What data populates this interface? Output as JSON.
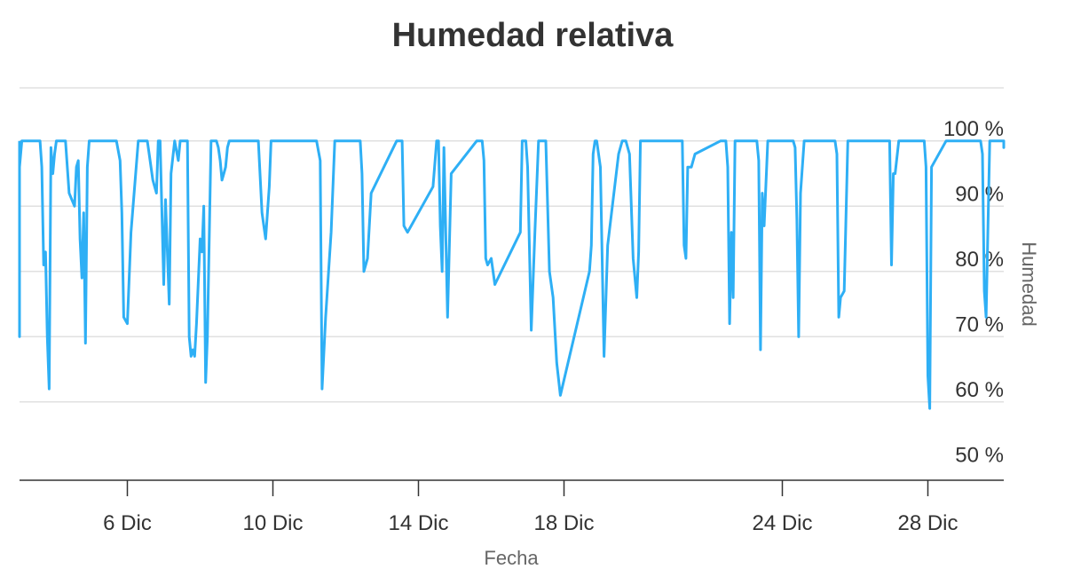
{
  "chart_data": {
    "type": "line",
    "title": "Humedad relativa",
    "xlabel": "Fecha",
    "ylabel": "Humedad",
    "ylim": [
      50,
      105
    ],
    "xlim": [
      2.2,
      30.5
    ],
    "y_ticks": [
      {
        "value": 50,
        "label": "50 %"
      },
      {
        "value": 60,
        "label": "60 %"
      },
      {
        "value": 70,
        "label": "70 %"
      },
      {
        "value": 80,
        "label": "80 %"
      },
      {
        "value": 90,
        "label": "90 %"
      },
      {
        "value": 100,
        "label": "100 %"
      }
    ],
    "x_ticks": [
      {
        "value": 6,
        "label": "6 Dic"
      },
      {
        "value": 10,
        "label": "10 Dic"
      },
      {
        "value": 14,
        "label": "14 Dic"
      },
      {
        "value": 18,
        "label": "18 Dic"
      },
      {
        "value": 24,
        "label": "24 Dic"
      },
      {
        "value": 28,
        "label": "28 Dic"
      }
    ],
    "grid": true,
    "legend": "none",
    "series_color": "#2eaff5",
    "series": [
      {
        "x": [
          2.2,
          2.4,
          2.5,
          2.55,
          2.6,
          2.65,
          2.8,
          3.1,
          3.5,
          3.6,
          3.65,
          3.7,
          3.75,
          3.8,
          3.85,
          3.9,
          3.95,
          4.0,
          4.05,
          4.15,
          4.2,
          4.3,
          4.4,
          4.55,
          4.6,
          4.65,
          4.7,
          4.75,
          4.8,
          4.85,
          4.9,
          4.95,
          5.0,
          5.05,
          5.2,
          5.5,
          5.6,
          5.7,
          5.8,
          5.85,
          5.9,
          6.0,
          6.1,
          6.3,
          6.5,
          6.55,
          6.6,
          6.7,
          6.8,
          6.85,
          6.9,
          7.0,
          7.05,
          7.15,
          7.2,
          7.3,
          7.4,
          7.45,
          7.5,
          7.55,
          7.6,
          7.65,
          7.7,
          7.75,
          7.8,
          7.85,
          7.9,
          8.0,
          8.05,
          8.1,
          8.15,
          8.2,
          8.3,
          8.35,
          8.4,
          8.45,
          8.5,
          8.55,
          8.6,
          8.65,
          8.7,
          8.75,
          8.8,
          8.85,
          8.9,
          9.0,
          9.5,
          9.6,
          9.7,
          9.8,
          9.9,
          9.95,
          10.0,
          10.1,
          10.2,
          11.2,
          11.3,
          11.35,
          11.45,
          11.6,
          11.7,
          12.3,
          12.4,
          12.45,
          12.5,
          12.6,
          12.7,
          13.4,
          13.5,
          13.55,
          13.6,
          13.7,
          14.4,
          14.5,
          14.55,
          14.6,
          14.65,
          14.7,
          14.8,
          14.9,
          15.6,
          15.7,
          15.75,
          15.8,
          15.85,
          15.9,
          16.0,
          16.1,
          16.8,
          16.85,
          16.9,
          16.95,
          17.0,
          17.1,
          17.2,
          17.3,
          17.4,
          17.5,
          17.6,
          17.7,
          17.8,
          17.9,
          18.7,
          18.75,
          18.8,
          18.85,
          18.9,
          19.0,
          19.1,
          19.2,
          19.5,
          19.6,
          19.65,
          19.7,
          19.8,
          19.9,
          20.0,
          20.05,
          20.1,
          20.2,
          20.3,
          21.1,
          21.2,
          21.25,
          21.3,
          21.35,
          21.4,
          21.5,
          21.6,
          22.3,
          22.4,
          22.45,
          22.5,
          22.55,
          22.6,
          22.65,
          22.7,
          23.2,
          23.3,
          23.35,
          23.4,
          23.45,
          23.5,
          23.6,
          24.2,
          24.25,
          24.3,
          24.35,
          24.4,
          24.45,
          24.5,
          24.6,
          25.3,
          25.4,
          25.45,
          25.5,
          25.55,
          25.6,
          25.7,
          25.8,
          25.9,
          26.0,
          26.1,
          26.8,
          26.9,
          26.95,
          27.0,
          27.05,
          27.1,
          27.2,
          27.3,
          27.8,
          27.9,
          27.95,
          28.0,
          28.05,
          28.1,
          28.5,
          28.6,
          29.3,
          29.4,
          29.45,
          29.5,
          29.55,
          29.6,
          29.7,
          30.0,
          30.1,
          30.15,
          30.2,
          30.5
        ],
        "values": [
          100,
          100,
          92,
          80,
          74,
          70,
          96,
          100,
          100,
          100,
          96,
          81,
          83,
          70,
          62,
          99,
          95,
          98,
          100,
          100,
          100,
          100,
          92,
          90,
          96,
          97,
          85,
          79,
          89,
          69,
          96,
          100,
          100,
          100,
          100,
          100,
          100,
          100,
          97,
          89,
          73,
          72,
          86,
          100,
          100,
          100,
          98,
          94,
          92,
          100,
          100,
          78,
          91,
          75,
          95,
          100,
          97,
          100,
          100,
          100,
          100,
          100,
          70,
          67,
          68,
          67,
          72,
          85,
          83,
          90,
          63,
          70,
          100,
          100,
          100,
          100,
          99,
          97,
          94,
          95,
          96,
          99,
          100,
          100,
          100,
          100,
          100,
          100,
          89,
          85,
          93,
          100,
          100,
          100,
          100,
          100,
          97,
          62,
          73,
          86,
          100,
          100,
          100,
          95,
          80,
          82,
          92,
          100,
          100,
          100,
          87,
          86,
          93,
          100,
          100,
          87,
          80,
          99,
          73,
          95,
          100,
          100,
          100,
          97,
          82,
          81,
          82,
          78,
          86,
          100,
          100,
          100,
          96,
          71,
          86,
          100,
          100,
          100,
          80,
          76,
          66,
          61,
          80,
          84,
          98,
          100,
          100,
          96,
          67,
          84,
          98,
          100,
          100,
          100,
          98,
          82,
          76,
          83,
          100,
          100,
          100,
          100,
          100,
          100,
          84,
          82,
          96,
          96,
          98,
          100,
          100,
          100,
          96,
          72,
          86,
          76,
          100,
          100,
          100,
          97,
          68,
          92,
          87,
          100,
          100,
          100,
          100,
          99,
          88,
          70,
          92,
          100,
          100,
          100,
          100,
          98,
          73,
          76,
          77,
          100,
          100,
          100,
          100,
          100,
          100,
          100,
          81,
          95,
          95,
          100,
          100,
          100,
          100,
          96,
          64,
          59,
          96,
          100,
          100,
          100,
          100,
          100,
          98,
          77,
          73,
          100,
          100,
          100,
          99,
          100,
          100
        ]
      }
    ]
  }
}
